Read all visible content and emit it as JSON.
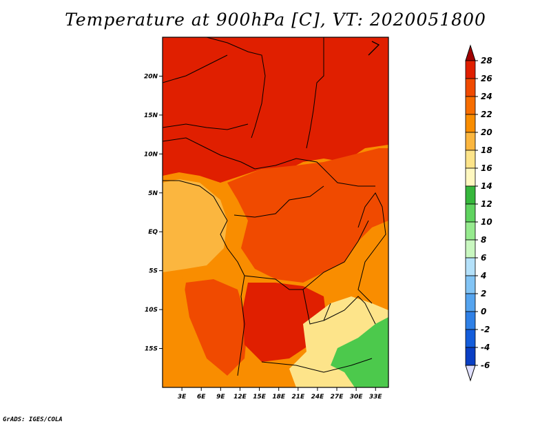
{
  "title": "Temperature at 900hPa [C], VT: 2020051800",
  "footer": "GrADS: IGES/COLA",
  "colors": {
    "map_red": "#e01f00",
    "map_orange_red": "#f04a00",
    "map_orange": "#f98d00",
    "map_light_orange": "#fbb63f",
    "map_yellow": "#fde48a",
    "map_green": "#4cc94c"
  },
  "chart_data": {
    "type": "heatmap",
    "title": "Temperature at 900hPa [C], VT: 2020051800",
    "x_tick_labels": [
      "3E",
      "6E",
      "9E",
      "12E",
      "15E",
      "18E",
      "21E",
      "24E",
      "27E",
      "30E",
      "33E"
    ],
    "x_ticks": [
      3,
      6,
      9,
      12,
      15,
      18,
      21,
      24,
      27,
      30,
      33
    ],
    "y_tick_labels": [
      "20N",
      "15N",
      "10N",
      "5N",
      "EQ",
      "5S",
      "10S",
      "15S"
    ],
    "y_ticks": [
      20,
      15,
      10,
      5,
      0,
      -5,
      -10,
      -15
    ],
    "xlim": [
      0,
      35
    ],
    "ylim": [
      -20,
      25
    ],
    "colorbar": {
      "levels": [
        "28",
        "26",
        "24",
        "22",
        "20",
        "18",
        "16",
        "14",
        "12",
        "10",
        "8",
        "6",
        "4",
        "2",
        "0",
        "-2",
        "-4",
        "-6"
      ],
      "level_values": [
        28,
        26,
        24,
        22,
        20,
        18,
        16,
        14,
        12,
        10,
        8,
        6,
        4,
        2,
        0,
        -2,
        -4,
        -6
      ],
      "colors": [
        "#a00000",
        "#e01f00",
        "#f04a00",
        "#f76d00",
        "#f98d00",
        "#fbb63f",
        "#fde48a",
        "#fff8c0",
        "#36b73c",
        "#5fd35f",
        "#96ea8e",
        "#c9f7c0",
        "#b4e1fa",
        "#82c4f5",
        "#55a4ef",
        "#2f80e6",
        "#145ddb",
        "#0a3fc4",
        "#000a73",
        "#e0e0ff"
      ]
    }
  }
}
